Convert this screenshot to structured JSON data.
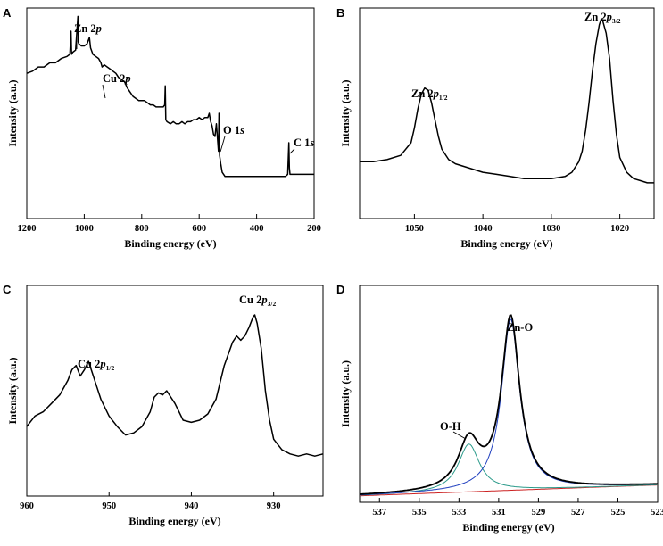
{
  "figure": {
    "panels": [
      "A",
      "B",
      "C",
      "D"
    ]
  },
  "chart_data": [
    {
      "panel": "A",
      "type": "line",
      "title": "",
      "xlabel": "Binding energy (eV)",
      "ylabel": "Intensity (a.u.)",
      "xlim": [
        1200,
        200
      ],
      "ylim": [
        0,
        1
      ],
      "xticks": [
        1200,
        1000,
        800,
        600,
        400,
        200
      ],
      "x_reversed": true,
      "annotations": [
        {
          "main": "Zn 2",
          "italic": "p",
          "sub": ""
        },
        {
          "main": "Cu 2",
          "italic": "p",
          "sub": ""
        },
        {
          "main": "O 1",
          "italic": "s",
          "sub": ""
        },
        {
          "main": "C 1",
          "italic": "s",
          "sub": ""
        }
      ],
      "series": [
        {
          "name": "survey",
          "color": "#000000",
          "x": [
            1200,
            1180,
            1160,
            1140,
            1120,
            1100,
            1080,
            1060,
            1050,
            1046,
            1044,
            1040,
            1030,
            1022,
            1021,
            1019,
            1010,
            1000,
            990,
            982,
            978,
            970,
            960,
            950,
            942,
            938,
            930,
            920,
            910,
            900,
            890,
            880,
            870,
            860,
            850,
            840,
            830,
            820,
            810,
            800,
            790,
            780,
            770,
            760,
            750,
            740,
            730,
            725,
            720,
            718,
            716,
            712,
            700,
            690,
            680,
            670,
            660,
            650,
            640,
            630,
            620,
            610,
            600,
            590,
            580,
            570,
            565,
            560,
            555,
            550,
            545,
            540,
            535,
            533,
            531,
            529,
            525,
            520,
            515,
            510,
            500,
            480,
            460,
            440,
            420,
            400,
            380,
            360,
            340,
            320,
            300,
            292,
            288,
            286,
            284,
            280,
            270,
            260,
            250,
            240,
            230,
            220,
            210,
            200
          ],
          "y": [
            0.69,
            0.7,
            0.72,
            0.72,
            0.74,
            0.74,
            0.76,
            0.77,
            0.78,
            0.89,
            0.78,
            0.79,
            0.8,
            0.96,
            0.84,
            0.83,
            0.82,
            0.82,
            0.83,
            0.86,
            0.81,
            0.78,
            0.77,
            0.76,
            0.74,
            0.72,
            0.73,
            0.72,
            0.71,
            0.7,
            0.69,
            0.67,
            0.66,
            0.65,
            0.62,
            0.6,
            0.58,
            0.57,
            0.56,
            0.56,
            0.56,
            0.55,
            0.54,
            0.54,
            0.53,
            0.53,
            0.53,
            0.53,
            0.54,
            0.63,
            0.47,
            0.46,
            0.45,
            0.46,
            0.45,
            0.45,
            0.46,
            0.45,
            0.46,
            0.46,
            0.47,
            0.47,
            0.48,
            0.47,
            0.48,
            0.48,
            0.5,
            0.46,
            0.44,
            0.4,
            0.39,
            0.45,
            0.36,
            0.32,
            0.5,
            0.3,
            0.26,
            0.22,
            0.21,
            0.2,
            0.2,
            0.2,
            0.2,
            0.2,
            0.2,
            0.2,
            0.2,
            0.2,
            0.2,
            0.2,
            0.2,
            0.21,
            0.36,
            0.24,
            0.21,
            0.21,
            0.21,
            0.21,
            0.21,
            0.21,
            0.21,
            0.21,
            0.21,
            0.21
          ]
        }
      ]
    },
    {
      "panel": "B",
      "type": "line",
      "title": "",
      "xlabel": "Binding energy (eV)",
      "ylabel": "Intensity (a.u.)",
      "xlim": [
        1058,
        1015
      ],
      "ylim": [
        0,
        1
      ],
      "xticks": [
        1050,
        1040,
        1030,
        1020
      ],
      "x_reversed": true,
      "annotations": [
        {
          "main": "Zn 2",
          "italic": "p",
          "sub": "1/2"
        },
        {
          "main": "Zn 2",
          "italic": "p",
          "sub": "3/2"
        }
      ],
      "series": [
        {
          "name": "Zn 2p",
          "color": "#000000",
          "x": [
            1058,
            1056,
            1054,
            1052,
            1050.5,
            1050,
            1049.5,
            1049,
            1048.5,
            1048,
            1047.5,
            1047,
            1046.5,
            1046,
            1045,
            1044,
            1042,
            1040,
            1038,
            1036,
            1034,
            1032,
            1030,
            1028,
            1027,
            1026,
            1025.5,
            1025,
            1024.5,
            1024,
            1023.5,
            1023,
            1022.7,
            1022.5,
            1022,
            1021.5,
            1021,
            1020.5,
            1020,
            1019,
            1018,
            1017,
            1016,
            1015
          ],
          "y": [
            0.27,
            0.27,
            0.28,
            0.3,
            0.36,
            0.43,
            0.52,
            0.59,
            0.62,
            0.61,
            0.55,
            0.47,
            0.39,
            0.33,
            0.28,
            0.26,
            0.24,
            0.22,
            0.21,
            0.2,
            0.19,
            0.19,
            0.19,
            0.2,
            0.22,
            0.27,
            0.32,
            0.42,
            0.55,
            0.7,
            0.83,
            0.92,
            0.95,
            0.94,
            0.88,
            0.76,
            0.56,
            0.4,
            0.29,
            0.22,
            0.19,
            0.18,
            0.17,
            0.17
          ]
        }
      ]
    },
    {
      "panel": "C",
      "type": "line",
      "title": "",
      "xlabel": "Binding energy (eV)",
      "ylabel": "Intensity (a.u.)",
      "xlim": [
        960,
        924
      ],
      "ylim": [
        0,
        1
      ],
      "xticks": [
        960,
        950,
        940,
        930
      ],
      "x_reversed": true,
      "annotations": [
        {
          "main": "Cu 2",
          "italic": "p",
          "sub": "1/2"
        },
        {
          "main": "Cu 2",
          "italic": "p",
          "sub": "3/2"
        }
      ],
      "series": [
        {
          "name": "Cu 2p",
          "color": "#000000",
          "x": [
            960,
            959,
            958,
            957,
            956,
            955,
            954.5,
            954,
            953.5,
            953,
            952.5,
            952,
            951.5,
            951,
            950,
            949,
            948,
            947,
            946,
            945,
            944.5,
            944,
            943.5,
            943,
            942.5,
            942,
            941.5,
            941,
            940,
            939,
            938,
            937,
            936,
            935,
            934.5,
            934,
            933.5,
            933,
            932.5,
            932.3,
            932,
            931.5,
            931,
            930.5,
            930,
            929,
            928,
            927,
            926,
            925,
            924
          ],
          "y": [
            0.33,
            0.38,
            0.4,
            0.44,
            0.48,
            0.55,
            0.6,
            0.62,
            0.57,
            0.6,
            0.64,
            0.58,
            0.52,
            0.46,
            0.38,
            0.33,
            0.29,
            0.3,
            0.33,
            0.4,
            0.47,
            0.49,
            0.48,
            0.5,
            0.47,
            0.44,
            0.4,
            0.36,
            0.35,
            0.36,
            0.39,
            0.46,
            0.62,
            0.73,
            0.76,
            0.74,
            0.76,
            0.8,
            0.85,
            0.86,
            0.82,
            0.7,
            0.5,
            0.36,
            0.27,
            0.22,
            0.2,
            0.19,
            0.2,
            0.19,
            0.2
          ]
        }
      ]
    },
    {
      "panel": "D",
      "type": "line",
      "title": "",
      "xlabel": "Binding energy (eV)",
      "ylabel": "Intensity (a.u.)",
      "xlim": [
        538,
        523
      ],
      "ylim": [
        0,
        1
      ],
      "xticks": [
        537,
        535,
        533,
        531,
        529,
        527,
        525,
        523
      ],
      "x_reversed": true,
      "annotations": [
        {
          "main": "O-H",
          "italic": "",
          "sub": ""
        },
        {
          "main": "Zn-O",
          "italic": "",
          "sub": ""
        }
      ],
      "fit": {
        "baseline": {
          "start": [
            538,
            0.03
          ],
          "end": [
            523,
            0.08
          ]
        },
        "components": [
          {
            "name": "Zn-O",
            "center": 530.4,
            "height": 0.79,
            "fwhm": 1.1,
            "color": "#1f3fbf"
          },
          {
            "name": "O-H",
            "center": 532.5,
            "height": 0.22,
            "fwhm": 1.3,
            "color": "#2a9a8a"
          }
        ]
      },
      "series": [
        {
          "name": "Raw",
          "color": "#000000",
          "width": 1.8
        },
        {
          "name": "Zn-O",
          "color": "#1f3fbf",
          "width": 1.0
        },
        {
          "name": "O-H",
          "color": "#2a9a8a",
          "width": 1.0
        },
        {
          "name": "Background",
          "color": "#cc2222",
          "width": 1.0
        }
      ]
    }
  ]
}
